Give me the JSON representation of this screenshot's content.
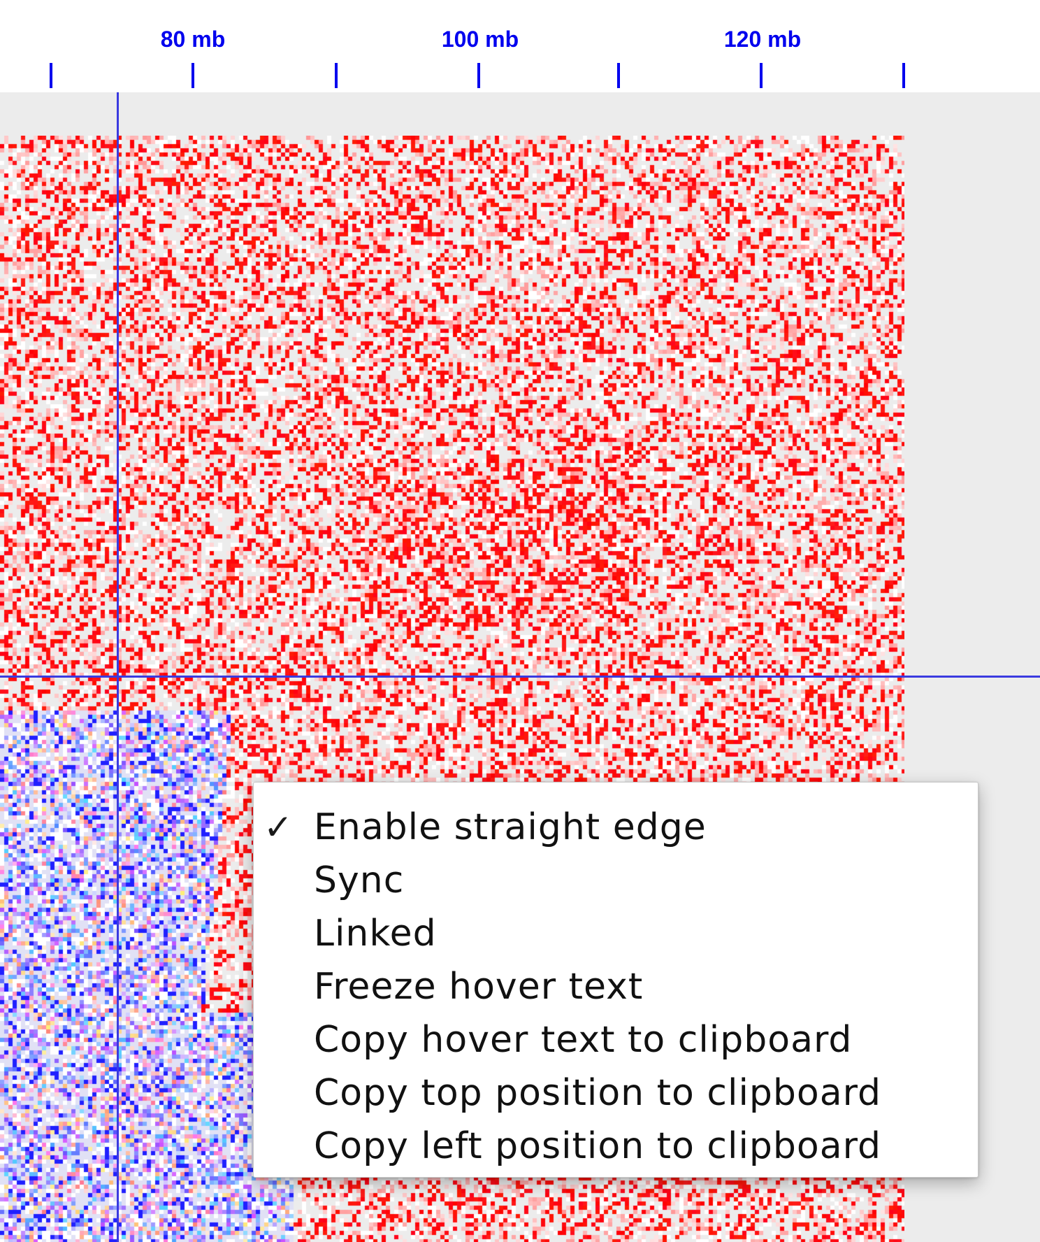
{
  "ruler": {
    "tick_labels": [
      "80 mb",
      "100 mb",
      "120 mb"
    ],
    "unit": "mb"
  },
  "heatmap": {
    "description_colors": {
      "high": "#ff0000",
      "low": "#0000ff",
      "background": "#ececec"
    }
  },
  "context_menu": {
    "check_glyph": "✓",
    "items": [
      {
        "label": "Enable straight edge",
        "checked": true
      },
      {
        "label": "Sync",
        "checked": false
      },
      {
        "label": "Linked",
        "checked": false
      },
      {
        "label": "Freeze hover text",
        "checked": false
      },
      {
        "label": "Copy hover text to clipboard",
        "checked": false
      },
      {
        "label": "Copy top position to clipboard",
        "checked": false
      },
      {
        "label": "Copy left position to clipboard",
        "checked": false
      }
    ]
  },
  "colors": {
    "ruler_text": "#0000ee",
    "crosshair": "#3a3ae0"
  }
}
